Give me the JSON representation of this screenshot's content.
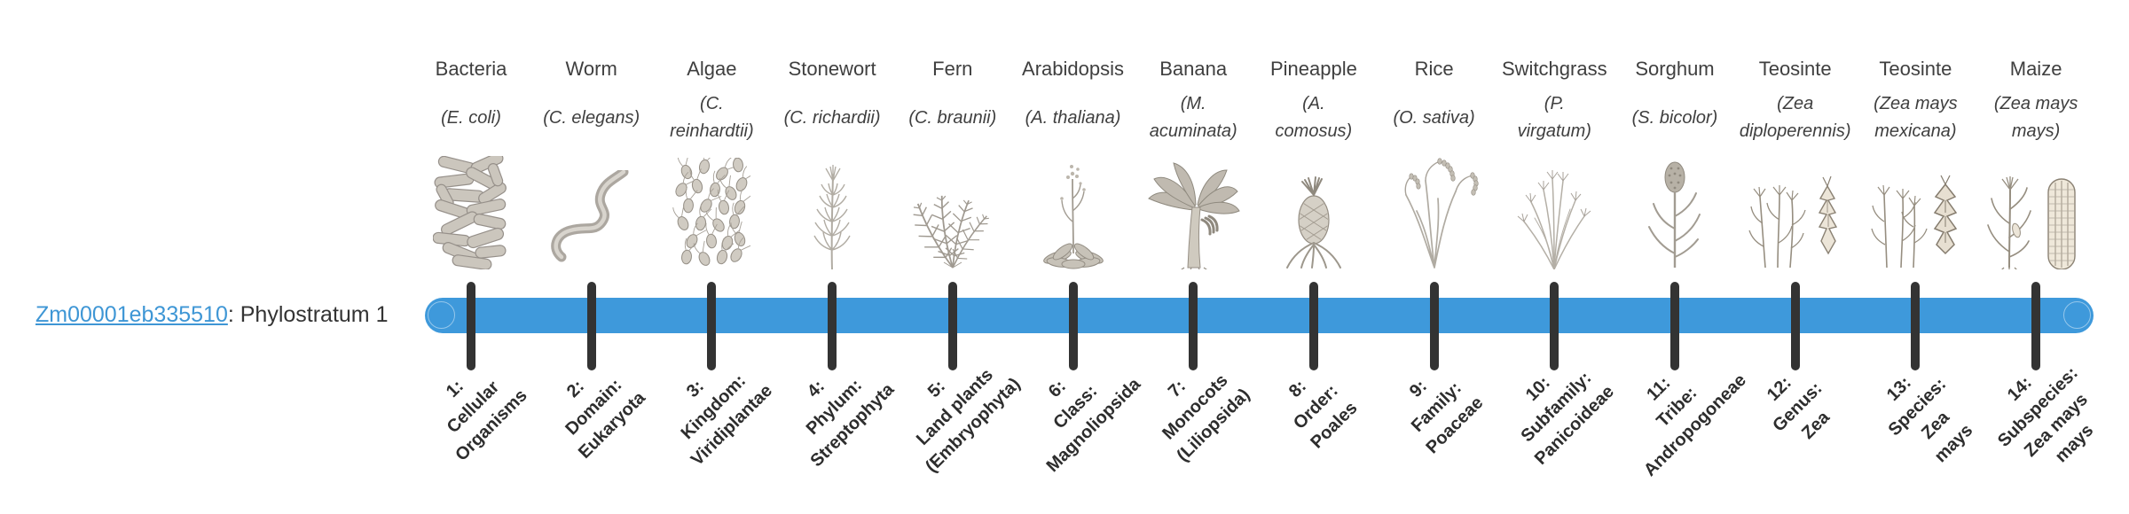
{
  "gene": {
    "id": "Zm00001eb335510",
    "suffix": ": Phylostratum 1"
  },
  "colors": {
    "bar_blue": "#3E99DB",
    "tick_dark": "#333333",
    "link_blue": "#3E96D5",
    "text_dark": "#333333",
    "label_gray": "#3F3F3F",
    "illustration_gray": "#9A948A"
  },
  "timeline": {
    "stratum_count": 14,
    "highlighted_phylostratum": 1
  },
  "strata": [
    {
      "num": 1,
      "common_name": "Bacteria",
      "species_lines": [
        "(E. coli)"
      ],
      "icon": "bacteria-icon",
      "stratum_lines": [
        "1:",
        "Cellular",
        "Organisms"
      ]
    },
    {
      "num": 2,
      "common_name": "Worm",
      "species_lines": [
        "(C. elegans)"
      ],
      "icon": "worm-icon",
      "stratum_lines": [
        "2:",
        "Domain:",
        "Eukaryota"
      ]
    },
    {
      "num": 3,
      "common_name": "Algae",
      "species_lines": [
        "(C.",
        "reinhardtii)"
      ],
      "icon": "algae-icon",
      "stratum_lines": [
        "3:",
        "Kingdom:",
        "Viridiplantae"
      ]
    },
    {
      "num": 4,
      "common_name": "Stonewort",
      "species_lines": [
        "(C. richardii)"
      ],
      "icon": "stonewort-icon",
      "stratum_lines": [
        "4:",
        "Phylum:",
        "Streptophyta"
      ]
    },
    {
      "num": 5,
      "common_name": "Fern",
      "species_lines": [
        "(C. braunii)"
      ],
      "icon": "fern-icon",
      "stratum_lines": [
        "5:",
        "Land plants",
        "(Embryophyta)"
      ]
    },
    {
      "num": 6,
      "common_name": "Arabidopsis",
      "species_lines": [
        "(A. thaliana)"
      ],
      "icon": "arabidopsis-icon",
      "stratum_lines": [
        "6:",
        "Class:",
        "Magnoliopsida"
      ]
    },
    {
      "num": 7,
      "common_name": "Banana",
      "species_lines": [
        "(M.",
        "acuminata)"
      ],
      "icon": "banana-icon",
      "stratum_lines": [
        "7:",
        "Monocots",
        "(Liliopsida)"
      ]
    },
    {
      "num": 8,
      "common_name": "Pineapple",
      "species_lines": [
        "(A.",
        "comosus)"
      ],
      "icon": "pineapple-icon",
      "stratum_lines": [
        "8:",
        "Order:",
        "Poales"
      ]
    },
    {
      "num": 9,
      "common_name": "Rice",
      "species_lines": [
        "(O. sativa)"
      ],
      "icon": "rice-icon",
      "stratum_lines": [
        "9:",
        "Family:",
        "Poaceae"
      ]
    },
    {
      "num": 10,
      "common_name": "Switchgrass",
      "species_lines": [
        "(P.",
        "virgatum)"
      ],
      "icon": "switchgrass-icon",
      "stratum_lines": [
        "10:",
        "Subfamily:",
        "Panicoideae"
      ]
    },
    {
      "num": 11,
      "common_name": "Sorghum",
      "species_lines": [
        "(S. bicolor)"
      ],
      "icon": "sorghum-icon",
      "stratum_lines": [
        "11:",
        "Tribe:",
        "Andropogoneae"
      ]
    },
    {
      "num": 12,
      "common_name": "Teosinte",
      "species_lines": [
        "(Zea",
        "diploperennis)"
      ],
      "icon": "teosinte-diploperennis-icon",
      "stratum_lines": [
        "12:",
        "Genus:",
        "Zea"
      ]
    },
    {
      "num": 13,
      "common_name": "Teosinte",
      "species_lines": [
        "(Zea mays",
        "mexicana)"
      ],
      "icon": "teosinte-mexicana-icon",
      "stratum_lines": [
        "13:",
        "Species:",
        "Zea",
        "mays"
      ]
    },
    {
      "num": 14,
      "common_name": "Maize",
      "species_lines": [
        "(Zea mays",
        "mays)"
      ],
      "icon": "maize-icon",
      "stratum_lines": [
        "14:",
        "Subspecies:",
        "Zea mays",
        "mays"
      ]
    }
  ]
}
